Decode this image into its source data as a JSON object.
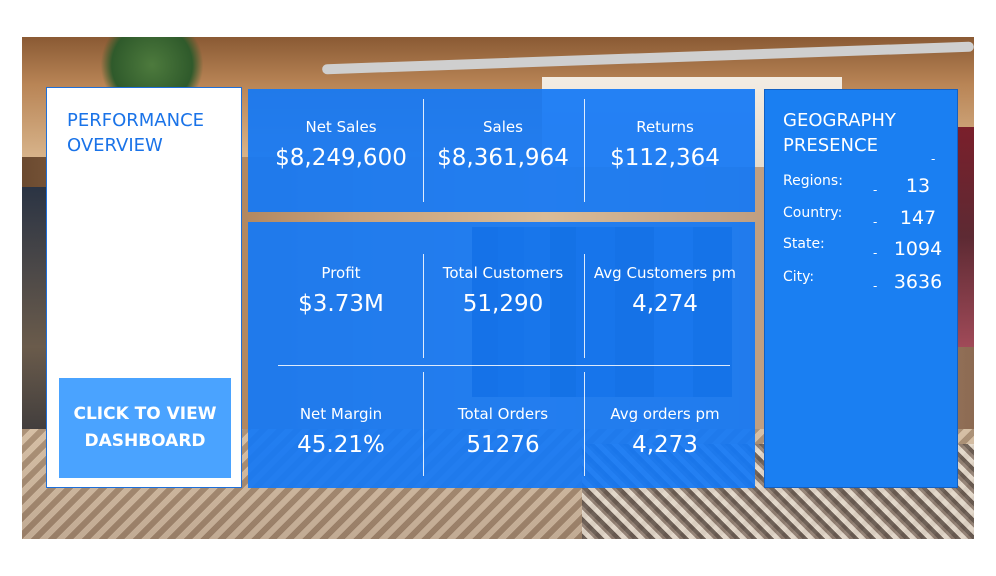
{
  "left": {
    "title": "PERFORMANCE OVERVIEW",
    "button_label": "CLICK TO VIEW DASHBOARD"
  },
  "top_metrics": [
    {
      "label": "Net Sales",
      "value": "$8,249,600"
    },
    {
      "label": "Sales",
      "value": "$8,361,964"
    },
    {
      "label": "Returns",
      "value": "$112,364"
    }
  ],
  "mid_metrics": [
    {
      "label": "Profit",
      "value": "$3.73M"
    },
    {
      "label": "Total Customers",
      "value": "51,290"
    },
    {
      "label": "Avg Customers pm",
      "value": "4,274"
    }
  ],
  "bottom_metrics": [
    {
      "label": "Net Margin",
      "value": "45.21%"
    },
    {
      "label": "Total Orders",
      "value": "51276"
    },
    {
      "label": "Avg orders pm",
      "value": "4,273"
    }
  ],
  "geography": {
    "title": "GEOGRAPHY PRESENCE",
    "rows": [
      {
        "label": "Regions:",
        "value": "13"
      },
      {
        "label": "Country:",
        "value": "147"
      },
      {
        "label": "State:",
        "value": "1094"
      },
      {
        "label": "City:",
        "value": "3636"
      }
    ]
  },
  "colors": {
    "primary_blue": "#1a7ff2",
    "button_blue": "#4aa3ff",
    "title_blue": "#1a73e8"
  }
}
